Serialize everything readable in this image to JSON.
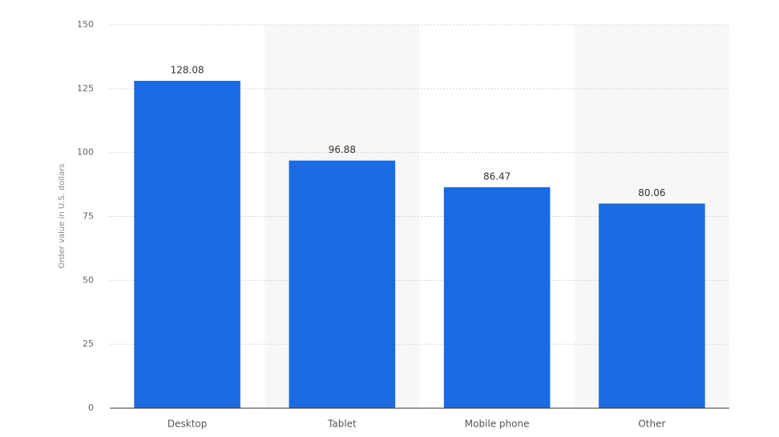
{
  "chart_data": {
    "type": "bar",
    "y_label": "Order value in U.S. dollars",
    "categories": [
      "Desktop",
      "Tablet",
      "Mobile phone",
      "Other"
    ],
    "values": [
      128.08,
      96.88,
      86.47,
      80.06
    ],
    "color": "#1a6ae4",
    "ylim": [
      0,
      150
    ],
    "yticks": [
      0,
      25,
      50,
      75,
      100,
      125,
      150
    ],
    "grid": true
  }
}
